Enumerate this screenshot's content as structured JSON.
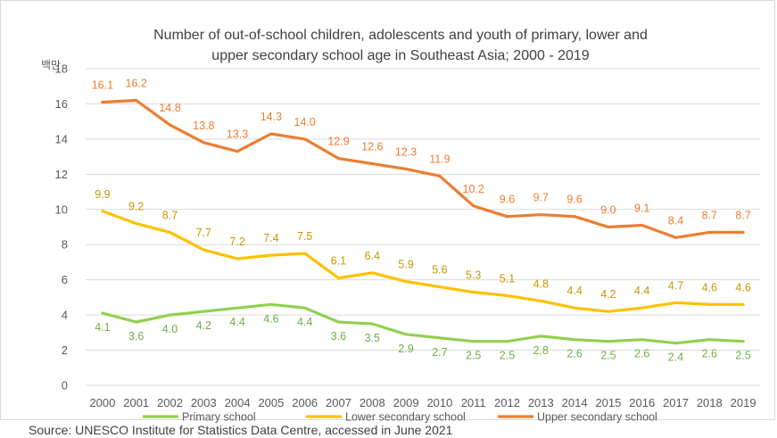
{
  "chart_data": {
    "type": "line",
    "title_line1": "Number of out-of-school children, adolescents and youth of primary, lower and",
    "title_line2": "upper secondary school age in Southeast Asia; 2000 - 2019",
    "y_unit": "백만",
    "x": [
      "2000",
      "2001",
      "2002",
      "2003",
      "2004",
      "2005",
      "2006",
      "2007",
      "2008",
      "2009",
      "2010",
      "2011",
      "2012",
      "2013",
      "2014",
      "2015",
      "2016",
      "2017",
      "2018",
      "2019"
    ],
    "ylim": [
      0,
      18
    ],
    "yticks": [
      "0",
      "2",
      "4",
      "6",
      "8",
      "10",
      "12",
      "14",
      "16",
      "18"
    ],
    "grid": true,
    "legend_position": "bottom",
    "series": [
      {
        "name": "Primary school",
        "color": "#92d050",
        "label_color": "#70ad47",
        "values": [
          4.1,
          3.6,
          4.0,
          4.2,
          4.4,
          4.6,
          4.4,
          3.6,
          3.5,
          2.9,
          2.7,
          2.5,
          2.5,
          2.8,
          2.6,
          2.5,
          2.6,
          2.4,
          2.6,
          2.5
        ],
        "labels": [
          "4.1",
          "3.6",
          "4.0",
          "4.2",
          "4.4",
          "4.6",
          "4.4",
          "3.6",
          "3.5",
          "2.9",
          "2.7",
          "2.5",
          "2.5",
          "2.8",
          "2.6",
          "2.5",
          "2.6",
          "2.4",
          "2.6",
          "2.5"
        ]
      },
      {
        "name": "Lower secondary school",
        "color": "#ffc000",
        "label_color": "#c89600",
        "values": [
          9.9,
          9.2,
          8.7,
          7.7,
          7.2,
          7.4,
          7.5,
          6.1,
          6.4,
          5.9,
          5.6,
          5.3,
          5.1,
          4.8,
          4.4,
          4.2,
          4.4,
          4.7,
          4.6,
          4.6
        ],
        "labels": [
          "9.9",
          "9.2",
          "8.7",
          "7.7",
          "7.2",
          "7.4",
          "7.5",
          "6.1",
          "6.4",
          "5.9",
          "5.6",
          "5.3",
          "5.1",
          "4.8",
          "4.4",
          "4.2",
          "4.4",
          "4.7",
          "4.6",
          "4.6"
        ]
      },
      {
        "name": "Upper secondary school",
        "color": "#ed7d31",
        "label_color": "#ed7d31",
        "values": [
          16.1,
          16.2,
          14.8,
          13.8,
          13.3,
          14.3,
          14.0,
          12.9,
          12.6,
          12.3,
          11.9,
          10.2,
          9.6,
          9.7,
          9.6,
          9.0,
          9.1,
          8.4,
          8.7,
          8.7
        ],
        "labels": [
          "16.1",
          "16.2",
          "14.8",
          "13.8",
          "13.3",
          "14.3",
          "14.0",
          "12.9",
          "12.6",
          "12.3",
          "11.9",
          "10.2",
          "9.6",
          "9.7",
          "9.6",
          "9.0",
          "9.1",
          "8.4",
          "8.7",
          "8.7"
        ]
      }
    ]
  },
  "source": "Source: UNESCO Institute for Statistics  Data Centre, accessed in June 2021"
}
